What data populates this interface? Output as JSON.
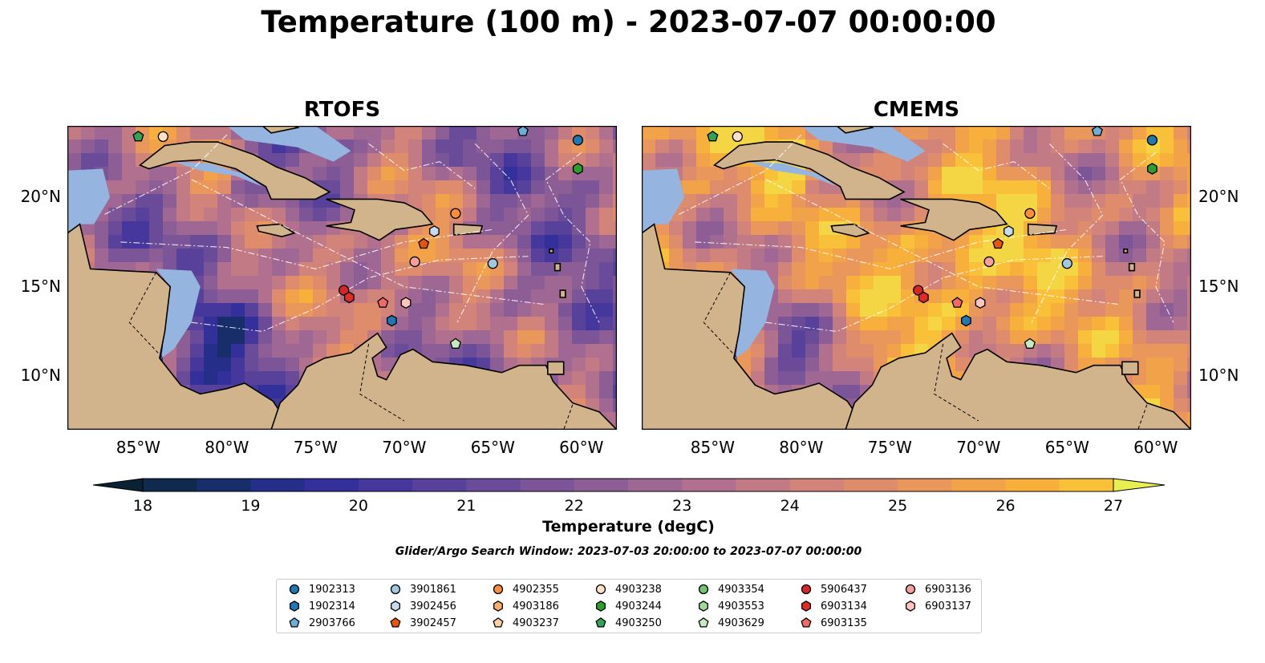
{
  "title": "Temperature (100 m) - 2023-07-07 00:00:00",
  "panels": [
    {
      "name": "RTOFS",
      "palette": "rtofs"
    },
    {
      "name": "CMEMS",
      "palette": "cmems"
    }
  ],
  "lon_ticks": [
    "85°W",
    "80°W",
    "75°W",
    "70°W",
    "65°W",
    "60°W"
  ],
  "lat_ticks": [
    "20°N",
    "15°N",
    "10°N"
  ],
  "lon_values": [
    -85,
    -80,
    -75,
    -70,
    -65,
    -60
  ],
  "lat_values": [
    20,
    15,
    10
  ],
  "extent": {
    "lon_min": -89,
    "lon_max": -58,
    "lat_min": 7,
    "lat_max": 24
  },
  "colorbar": {
    "label": "Temperature (degC)",
    "ticks": [
      "18",
      "19",
      "20",
      "21",
      "22",
      "23",
      "24",
      "25",
      "26",
      "27"
    ],
    "min": 18,
    "max": 27,
    "step": 0.5,
    "extend": "both",
    "colors": [
      "#0a2233",
      "#0f2a4d",
      "#172e6b",
      "#252f8a",
      "#34309b",
      "#45379b",
      "#57419b",
      "#694b9a",
      "#7b5598",
      "#8d5e96",
      "#9f6793",
      "#b1708d",
      "#c27a84",
      "#d2837a",
      "#df8c6c",
      "#ea975b",
      "#f2a34a",
      "#f7b03c",
      "#f9c13a",
      "#f4d543",
      "#e9ef51"
    ]
  },
  "subtitle": "Glider/Argo Search Window: 2023-07-03 20:00:00 to 2023-07-07 00:00:00",
  "land_color": "#d2b48c",
  "shelf_color": "#95b4e0",
  "legend": [
    {
      "id": "1902313",
      "color": "#1f77b4",
      "marker": "circle"
    },
    {
      "id": "1902314",
      "color": "#1f77b4",
      "marker": "hexagon"
    },
    {
      "id": "2903766",
      "color": "#6baed6",
      "marker": "pentagon"
    },
    {
      "id": "3901861",
      "color": "#9ecae1",
      "marker": "circle"
    },
    {
      "id": "3902456",
      "color": "#c6dbef",
      "marker": "hexagon"
    },
    {
      "id": "3902457",
      "color": "#e6550d",
      "marker": "pentagon"
    },
    {
      "id": "4902355",
      "color": "#fd8d3c",
      "marker": "circle"
    },
    {
      "id": "4903186",
      "color": "#fdae6b",
      "marker": "hexagon"
    },
    {
      "id": "4903237",
      "color": "#fdd0a2",
      "marker": "pentagon"
    },
    {
      "id": "4903238",
      "color": "#fde0c8",
      "marker": "circle"
    },
    {
      "id": "4903244",
      "color": "#2ca02c",
      "marker": "hexagon"
    },
    {
      "id": "4903250",
      "color": "#31a354",
      "marker": "pentagon"
    },
    {
      "id": "4903354",
      "color": "#74c476",
      "marker": "circle"
    },
    {
      "id": "4903553",
      "color": "#a1d99b",
      "marker": "hexagon"
    },
    {
      "id": "4903629",
      "color": "#c7e9c0",
      "marker": "pentagon"
    },
    {
      "id": "5906437",
      "color": "#d62728",
      "marker": "circle"
    },
    {
      "id": "6903134",
      "color": "#de2d26",
      "marker": "hexagon"
    },
    {
      "id": "6903135",
      "color": "#f06a6a",
      "marker": "pentagon"
    },
    {
      "id": "6903136",
      "color": "#f4a0a0",
      "marker": "circle"
    },
    {
      "id": "6903137",
      "color": "#fcc5c0",
      "marker": "hexagon"
    }
  ],
  "floats": [
    {
      "id": "4903250",
      "lon": -85,
      "lat": 23.4
    },
    {
      "id": "4903238",
      "lon": -83.6,
      "lat": 23.4
    },
    {
      "id": "2903766",
      "lon": -63.3,
      "lat": 23.7
    },
    {
      "id": "1902313",
      "lon": -60.2,
      "lat": 23.2
    },
    {
      "id": "4903244",
      "lon": -60.2,
      "lat": 21.6
    },
    {
      "id": "4902355",
      "lon": -67.1,
      "lat": 19.1
    },
    {
      "id": "3902456",
      "lon": -68.3,
      "lat": 18.1
    },
    {
      "id": "3902457",
      "lon": -68.9,
      "lat": 17.4
    },
    {
      "id": "6903136",
      "lon": -69.4,
      "lat": 16.4
    },
    {
      "id": "3901861",
      "lon": -65,
      "lat": 16.3
    },
    {
      "id": "5906437",
      "lon": -73.4,
      "lat": 14.8
    },
    {
      "id": "6903134",
      "lon": -73.1,
      "lat": 14.4
    },
    {
      "id": "6903135",
      "lon": -71.2,
      "lat": 14.1
    },
    {
      "id": "6903137",
      "lon": -69.9,
      "lat": 14.1
    },
    {
      "id": "1902314",
      "lon": -70.7,
      "lat": 13.1
    },
    {
      "id": "4903629",
      "lon": -67.1,
      "lat": 11.8
    }
  ]
}
